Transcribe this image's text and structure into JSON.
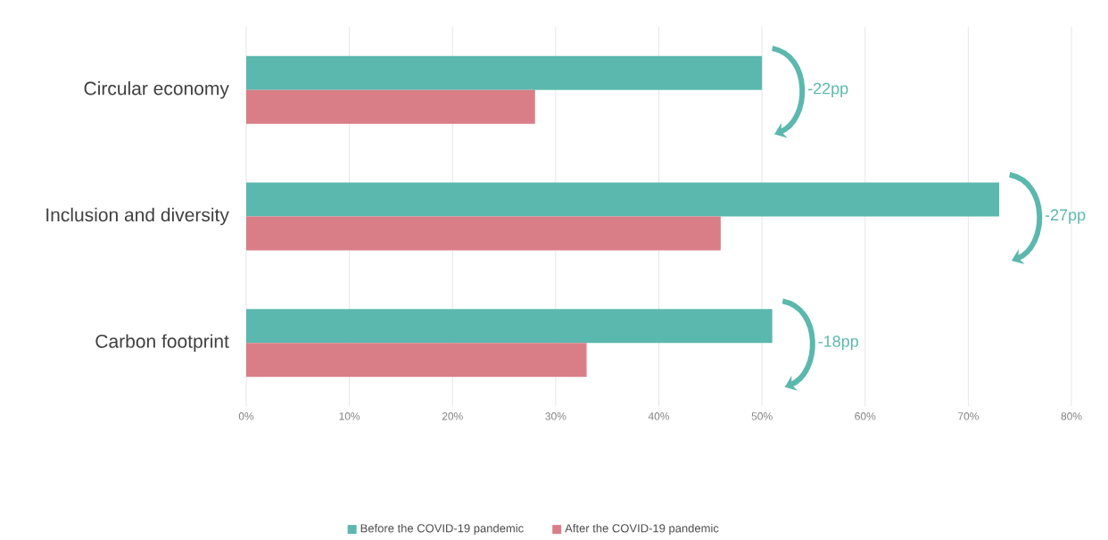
{
  "chart_data": {
    "type": "bar",
    "orientation": "horizontal",
    "categories": [
      "Circular economy",
      "Inclusion and diversity",
      "Carbon footprint"
    ],
    "series": [
      {
        "name": "Before the COVID-19 pandemic",
        "color": "#5bb8ae",
        "values": [
          50,
          73,
          51
        ]
      },
      {
        "name": "After the COVID-19 pandemic",
        "color": "#d97e87",
        "values": [
          28,
          46,
          33
        ]
      }
    ],
    "xlim": [
      0,
      80
    ],
    "xticks": [
      {
        "value": 0,
        "label": "0%"
      },
      {
        "value": 10,
        "label": "10%"
      },
      {
        "value": 20,
        "label": "20%"
      },
      {
        "value": 30,
        "label": "30%"
      },
      {
        "value": 40,
        "label": "40%"
      },
      {
        "value": 50,
        "label": "50%"
      },
      {
        "value": 60,
        "label": "60%"
      },
      {
        "value": 70,
        "label": "70%"
      },
      {
        "value": 80,
        "label": "80%"
      }
    ],
    "annotations": [
      "-22pp",
      "-27pp",
      "-18pp"
    ],
    "grid": "x",
    "legend": "bottom"
  }
}
